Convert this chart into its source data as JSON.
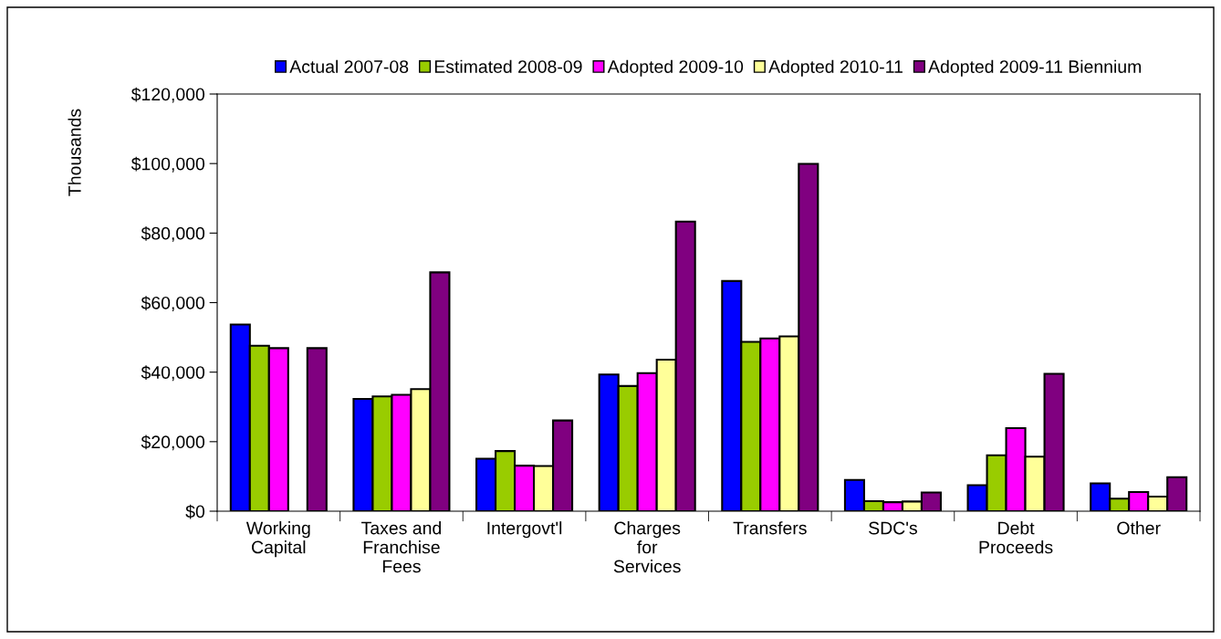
{
  "chart_data": {
    "type": "bar",
    "ylabel": "Thousands",
    "categories": [
      "Working\nCapital",
      "Taxes and\nFranchise\nFees",
      "Intergovt'l",
      "Charges\nfor\nServices",
      "Transfers",
      "SDC's",
      "Debt\nProceeds",
      "Other"
    ],
    "series": [
      {
        "name": "Actual 2007-08",
        "color": "#0000ff",
        "values": [
          53700,
          32300,
          15100,
          39300,
          66200,
          9000,
          7500,
          8000
        ]
      },
      {
        "name": "Estimated 2008-09",
        "color": "#99cc00",
        "values": [
          47600,
          33000,
          17300,
          36000,
          48700,
          2900,
          16100,
          3600
        ]
      },
      {
        "name": "Adopted 2009-10",
        "color": "#ff00ff",
        "values": [
          46900,
          33500,
          13100,
          39700,
          49700,
          2600,
          23900,
          5500
        ]
      },
      {
        "name": "Adopted 2010-11",
        "color": "#ffff99",
        "values": [
          null,
          35100,
          13000,
          43600,
          50300,
          2800,
          15700,
          4200
        ]
      },
      {
        "name": "Adopted 2009-11 Biennium",
        "color": "#800080",
        "values": [
          46900,
          68700,
          26100,
          83300,
          99900,
          5400,
          39500,
          9800
        ]
      }
    ],
    "ylim": [
      0,
      120000
    ],
    "yticks": [
      {
        "value": 0,
        "label": "$0"
      },
      {
        "value": 20000,
        "label": "$20,000"
      },
      {
        "value": 40000,
        "label": "$40,000"
      },
      {
        "value": 60000,
        "label": "$60,000"
      },
      {
        "value": 80000,
        "label": "$80,000"
      },
      {
        "value": 100000,
        "label": "$100,000"
      },
      {
        "value": 120000,
        "label": "$120,000"
      }
    ],
    "grid": false,
    "legend": "top"
  }
}
